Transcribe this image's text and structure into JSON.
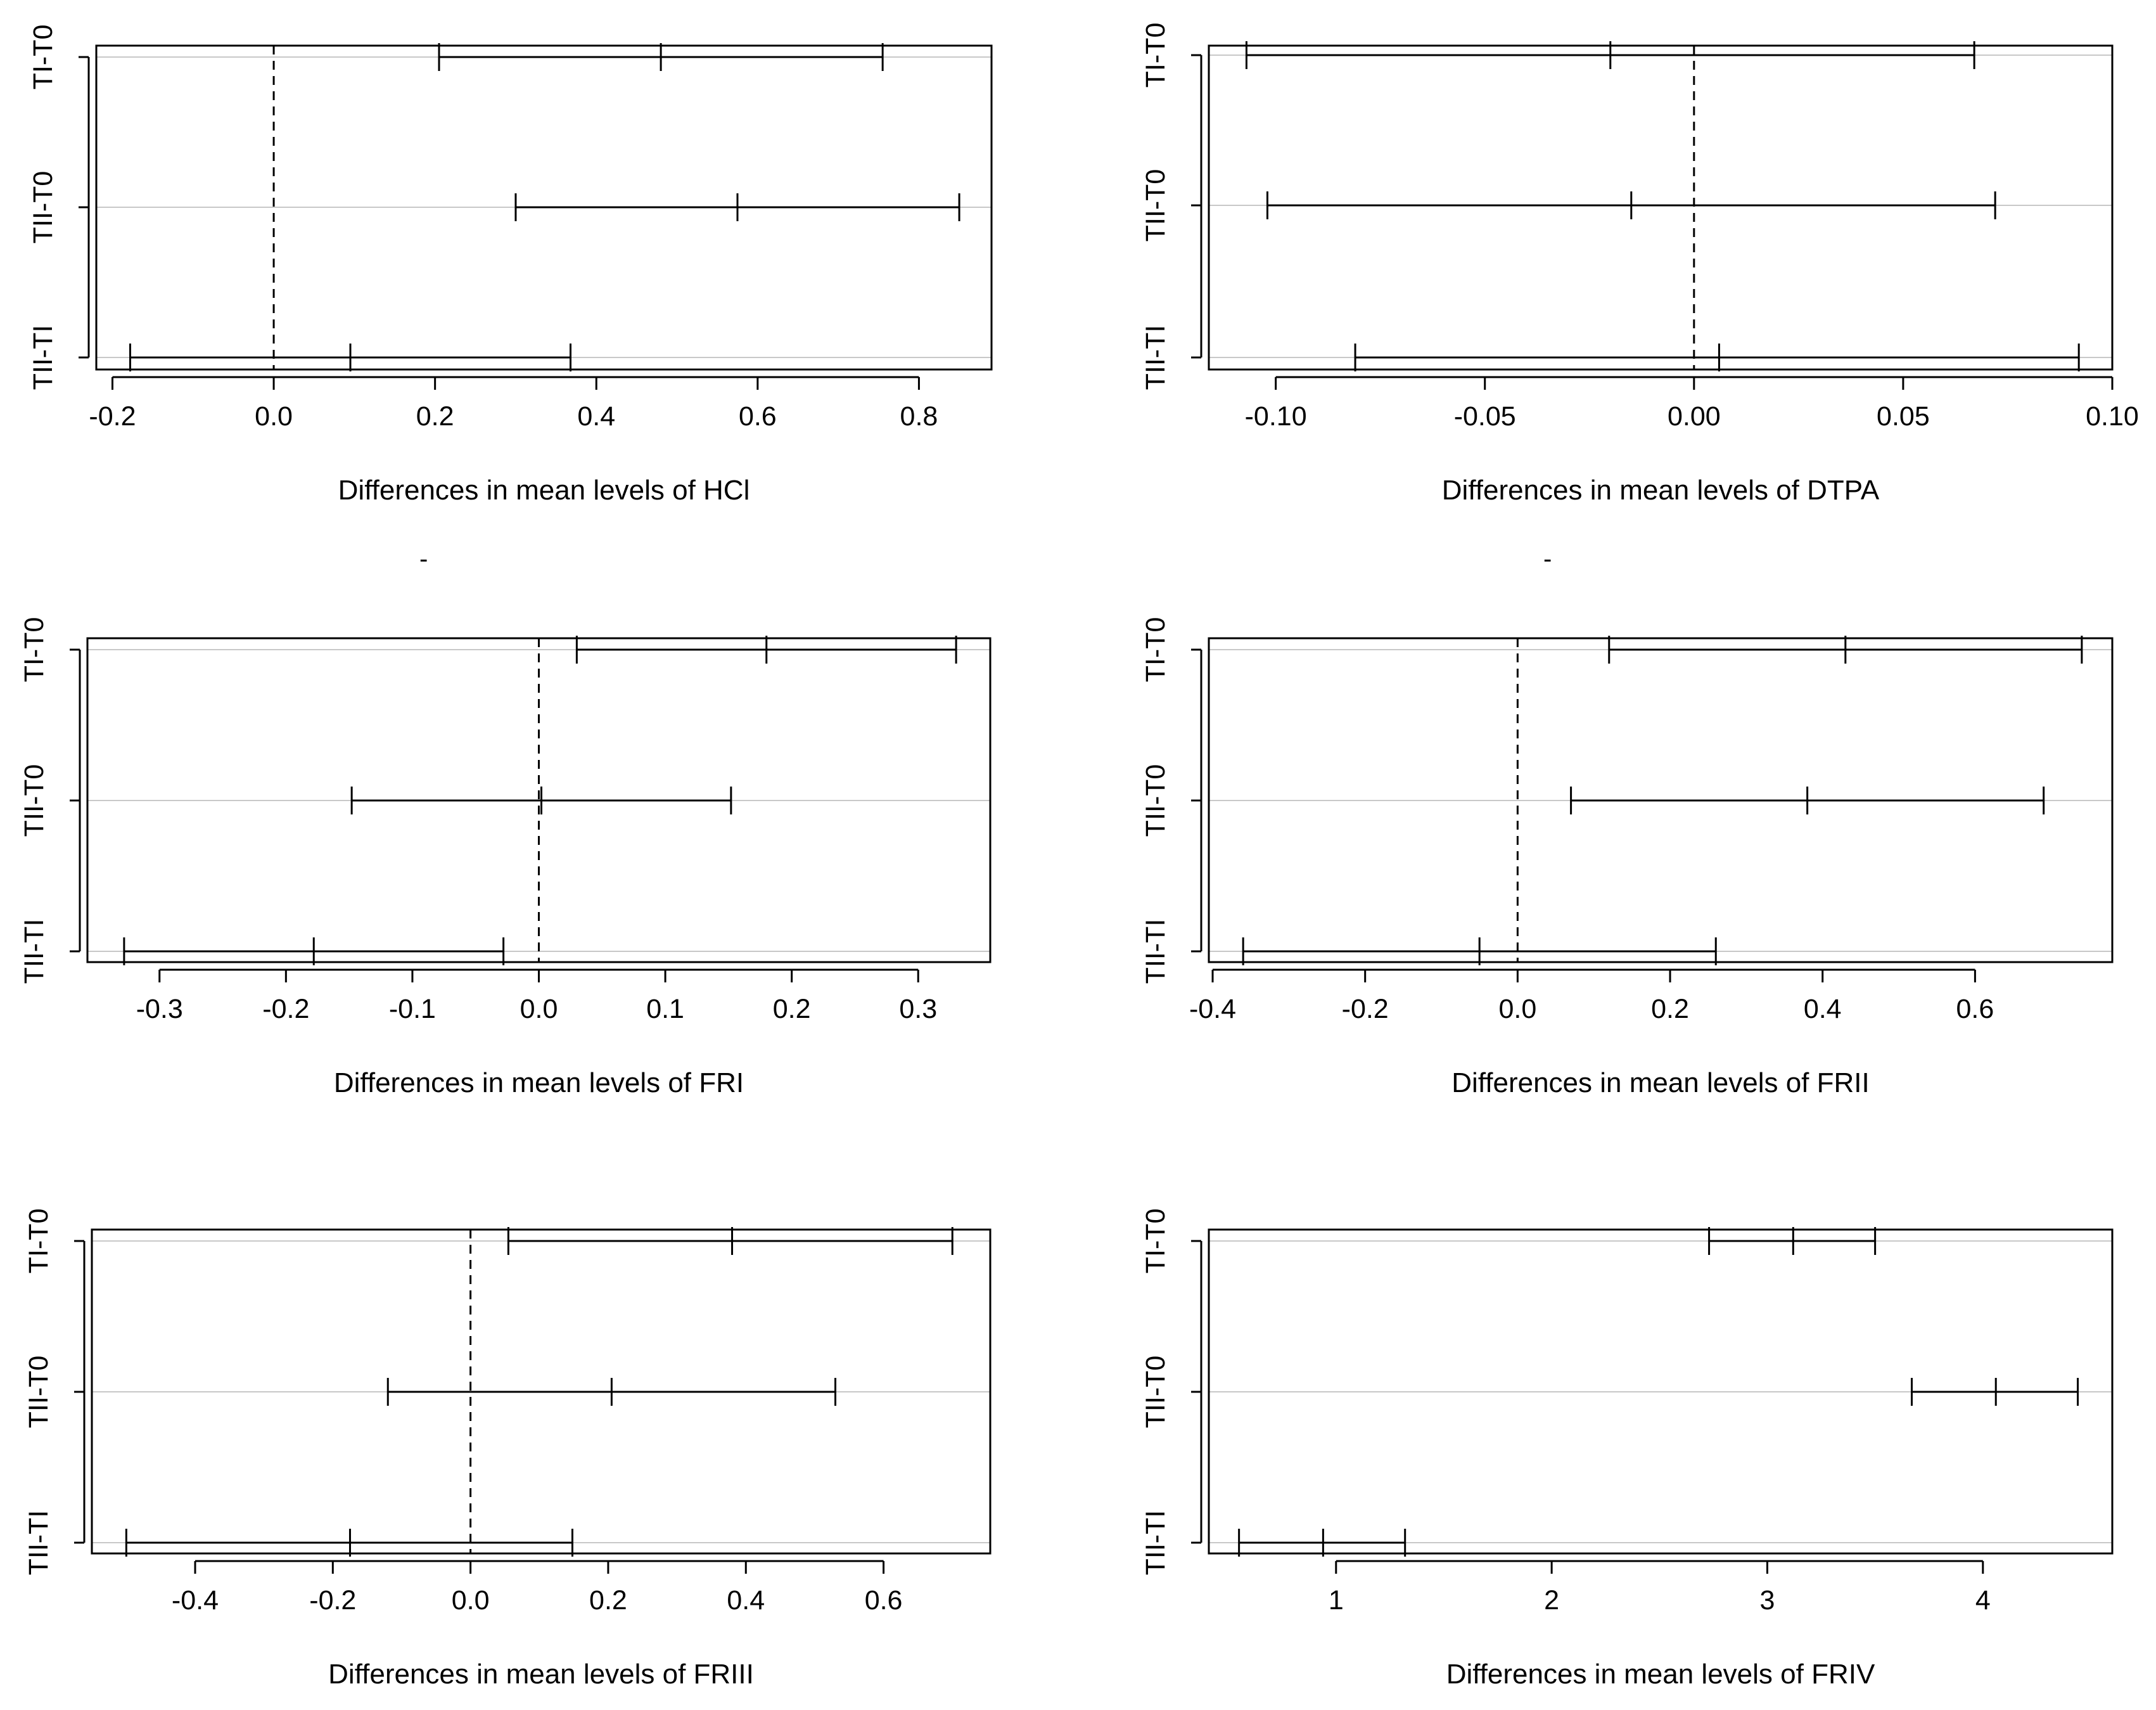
{
  "chart_data": [
    {
      "type": "interval",
      "xlabel": "Differences in mean levels of HCl",
      "categories": [
        "TI-T0",
        "TII-T0",
        "TII-TI"
      ],
      "xlim": [
        -0.22,
        0.89
      ],
      "xticks": [
        -0.2,
        0.0,
        0.2,
        0.4,
        0.6,
        0.8
      ],
      "xtick_labels": [
        "-0.2",
        "0.0",
        "0.2",
        "0.4",
        "0.6",
        "0.8"
      ],
      "reference_line": 0,
      "intervals": [
        {
          "label": "TI-T0",
          "lwr": 0.205,
          "diff": 0.48,
          "upr": 0.755
        },
        {
          "label": "TII-T0",
          "lwr": 0.3,
          "diff": 0.575,
          "upr": 0.85
        },
        {
          "label": "TII-TI",
          "lwr": -0.178,
          "diff": 0.095,
          "upr": 0.368
        }
      ]
    },
    {
      "type": "interval",
      "xlabel": "Differences in mean levels of DTPA",
      "categories": [
        "TI-T0",
        "TII-T0",
        "TII-TI"
      ],
      "xlim": [
        -0.116,
        0.1
      ],
      "xticks": [
        -0.1,
        -0.05,
        0.0,
        0.05,
        0.1
      ],
      "xtick_labels": [
        "-0.10",
        "-0.05",
        "0.00",
        "0.05",
        "0.10"
      ],
      "reference_line": 0,
      "intervals": [
        {
          "label": "TI-T0",
          "lwr": -0.107,
          "diff": -0.02,
          "upr": 0.067
        },
        {
          "label": "TII-T0",
          "lwr": -0.102,
          "diff": -0.015,
          "upr": 0.072
        },
        {
          "label": "TII-TI",
          "lwr": -0.081,
          "diff": 0.006,
          "upr": 0.092
        }
      ]
    },
    {
      "type": "interval",
      "xlabel": "Differences in mean levels of FRI",
      "categories": [
        "TI-T0",
        "TII-T0",
        "TII-TI"
      ],
      "xlim": [
        -0.357,
        0.357
      ],
      "xticks": [
        -0.3,
        -0.2,
        -0.1,
        0.0,
        0.1,
        0.2,
        0.3
      ],
      "xtick_labels": [
        "-0.3",
        "-0.2",
        "-0.1",
        "0.0",
        "0.1",
        "0.2",
        "0.3"
      ],
      "reference_line": 0,
      "intervals": [
        {
          "label": "TI-T0",
          "lwr": 0.03,
          "diff": 0.18,
          "upr": 0.33
        },
        {
          "label": "TII-T0",
          "lwr": -0.148,
          "diff": 0.002,
          "upr": 0.152
        },
        {
          "label": "TII-TI",
          "lwr": -0.328,
          "diff": -0.178,
          "upr": -0.028
        }
      ]
    },
    {
      "type": "interval",
      "xlabel": "Differences in mean levels of FRII",
      "categories": [
        "TI-T0",
        "TII-T0",
        "TII-TI"
      ],
      "xlim": [
        -0.405,
        0.78
      ],
      "xticks": [
        -0.4,
        -0.2,
        0.0,
        0.2,
        0.4,
        0.6
      ],
      "xtick_labels": [
        "-0.4",
        "-0.2",
        "0.0",
        "0.2",
        "0.4",
        "0.6"
      ],
      "reference_line": 0,
      "intervals": [
        {
          "label": "TI-T0",
          "lwr": 0.12,
          "diff": 0.43,
          "upr": 0.74
        },
        {
          "label": "TII-T0",
          "lwr": 0.07,
          "diff": 0.38,
          "upr": 0.69
        },
        {
          "label": "TII-TI",
          "lwr": -0.36,
          "diff": -0.05,
          "upr": 0.26
        }
      ]
    },
    {
      "type": "interval",
      "xlabel": "Differences in mean levels of FRIII",
      "categories": [
        "TI-T0",
        "TII-T0",
        "TII-TI"
      ],
      "xlim": [
        -0.55,
        0.755
      ],
      "xticks": [
        -0.4,
        -0.2,
        0.0,
        0.2,
        0.4,
        0.6
      ],
      "xtick_labels": [
        "-0.4",
        "-0.2",
        "0.0",
        "0.2",
        "0.4",
        "0.6"
      ],
      "reference_line": 0,
      "intervals": [
        {
          "label": "TI-T0",
          "lwr": 0.055,
          "diff": 0.38,
          "upr": 0.7
        },
        {
          "label": "TII-T0",
          "lwr": -0.12,
          "diff": 0.205,
          "upr": 0.53
        },
        {
          "label": "TII-TI",
          "lwr": -0.5,
          "diff": -0.175,
          "upr": 0.148
        }
      ]
    },
    {
      "type": "interval",
      "xlabel": "Differences in mean levels of FRIV",
      "categories": [
        "TI-T0",
        "TII-T0",
        "TII-TI"
      ],
      "xlim": [
        0.41,
        4.6
      ],
      "xticks": [
        1,
        2,
        3,
        4
      ],
      "xtick_labels": [
        "1",
        "2",
        "3",
        "4"
      ],
      "intervals": [
        {
          "label": "TI-T0",
          "lwr": 2.73,
          "diff": 3.12,
          "upr": 3.5
        },
        {
          "label": "TII-T0",
          "lwr": 3.67,
          "diff": 4.06,
          "upr": 4.44
        },
        {
          "label": "TII-TI",
          "lwr": 0.55,
          "diff": 0.94,
          "upr": 1.32
        }
      ]
    }
  ],
  "stray_marks": [
    "-",
    "-"
  ]
}
